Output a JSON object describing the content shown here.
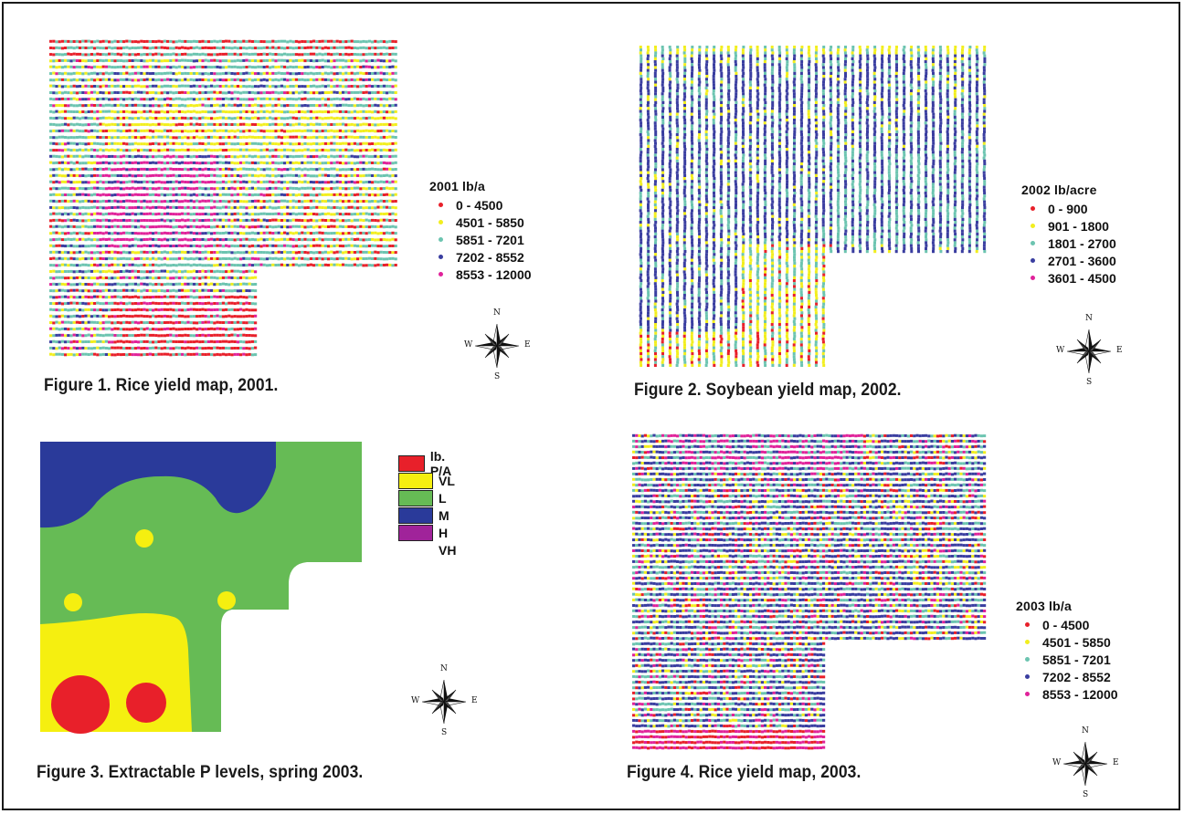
{
  "panels": [
    {
      "id": "fig1",
      "caption": "Figure 1. Rice yield map, 2001.",
      "legend_title": "2001 lb/a",
      "legend": [
        {
          "label": "0 - 4500",
          "color": "#e8202a"
        },
        {
          "label": "4501 - 5850",
          "color": "#f2ee1e"
        },
        {
          "label": "5851 - 7201",
          "color": "#6cc4b0"
        },
        {
          "label": "7202 - 8552",
          "color": "#3a3ea0"
        },
        {
          "label": "8553 - 12000",
          "color": "#e0229a"
        }
      ],
      "compass": {
        "n": "N",
        "s": "S",
        "w": "W",
        "e": "E"
      },
      "map_icon": "rice-yield-map-2001"
    },
    {
      "id": "fig2",
      "caption": "Figure 2. Soybean yield map, 2002.",
      "legend_title": "2002 lb/acre",
      "legend": [
        {
          "label": "0 - 900",
          "color": "#e8202a"
        },
        {
          "label": "901 - 1800",
          "color": "#f2ee1e"
        },
        {
          "label": "1801 - 2700",
          "color": "#6cc4b0"
        },
        {
          "label": "2701 - 3600",
          "color": "#3a3ea0"
        },
        {
          "label": "3601 - 4500",
          "color": "#e0229a"
        }
      ],
      "compass": {
        "n": "N",
        "s": "S",
        "w": "W",
        "e": "E"
      },
      "map_icon": "soybean-yield-map-2002"
    },
    {
      "id": "fig3",
      "caption": "Figure 3. Extractable P levels, spring 2003.",
      "legend": [
        {
          "label": "lb. P/A",
          "color": "#e8202a"
        },
        {
          "label": "VL",
          "color": "#f5ef10"
        },
        {
          "label": "L",
          "color": "#66bb55"
        },
        {
          "label": "M",
          "color": "#2a3a9a"
        },
        {
          "label": "H",
          "color": "#a0239a"
        }
      ],
      "legend_extra": "VH",
      "compass": {
        "n": "N",
        "s": "S",
        "w": "W",
        "e": "E"
      },
      "map_icon": "extractable-p-map-2003"
    },
    {
      "id": "fig4",
      "caption": "Figure 4. Rice yield map, 2003.",
      "legend_title": "2003 lb/a",
      "legend": [
        {
          "label": "0 - 4500",
          "color": "#e8202a"
        },
        {
          "label": "4501 - 5850",
          "color": "#f2ee1e"
        },
        {
          "label": "5851 - 7201",
          "color": "#6cc4b0"
        },
        {
          "label": "7202 - 8552",
          "color": "#3a3ea0"
        },
        {
          "label": "8553 - 12000",
          "color": "#e0229a"
        }
      ],
      "compass": {
        "n": "N",
        "s": "S",
        "w": "W",
        "e": "E"
      },
      "map_icon": "rice-yield-map-2003"
    }
  ]
}
